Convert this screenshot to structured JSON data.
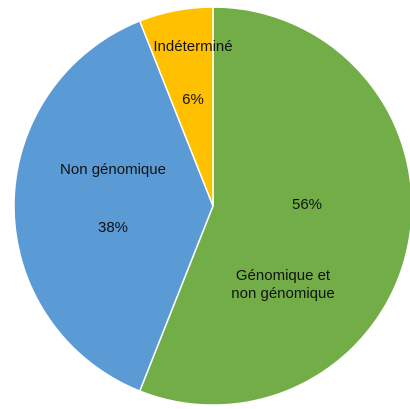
{
  "chart_data": {
    "type": "pie",
    "categories": [
      "Génomique et\nnon génomique",
      "Non génomique",
      "Indéterminé"
    ],
    "values": [
      56,
      38,
      6
    ],
    "value_labels": [
      "56%",
      "38%",
      "6%"
    ],
    "colors": [
      "#72ad47",
      "#5b9bd5",
      "#ffc000"
    ]
  }
}
